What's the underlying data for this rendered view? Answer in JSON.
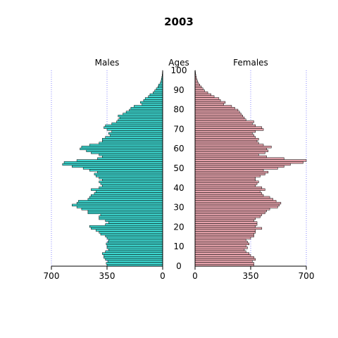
{
  "chart_data": {
    "type": "population-pyramid",
    "title": "2003",
    "center_label": "Ages",
    "left_label": "Males",
    "right_label": "Females",
    "age_ticks": [
      "0",
      "10",
      "20",
      "30",
      "40",
      "50",
      "60",
      "70",
      "80",
      "90",
      "100"
    ],
    "x_ticks": [
      "700",
      "350",
      "0",
      "0",
      "350",
      "700"
    ],
    "xlim": [
      0,
      700
    ],
    "grid": "dotted vertical lines at 350 and 700",
    "ages": [
      0,
      1,
      2,
      3,
      4,
      5,
      6,
      7,
      8,
      9,
      10,
      11,
      12,
      13,
      14,
      15,
      16,
      17,
      18,
      19,
      20,
      21,
      22,
      23,
      24,
      25,
      26,
      27,
      28,
      29,
      30,
      31,
      32,
      33,
      34,
      35,
      36,
      37,
      38,
      39,
      40,
      41,
      42,
      43,
      44,
      45,
      46,
      47,
      48,
      49,
      50,
      51,
      52,
      53,
      54,
      55,
      56,
      57,
      58,
      59,
      60,
      61,
      62,
      63,
      64,
      65,
      66,
      67,
      68,
      69,
      70,
      71,
      72,
      73,
      74,
      75,
      76,
      77,
      78,
      79,
      80,
      81,
      82,
      83,
      84,
      85,
      86,
      87,
      88,
      89,
      90,
      91,
      92,
      93,
      94,
      95,
      96,
      97,
      98,
      99,
      100
    ],
    "males": [
      350,
      355,
      345,
      360,
      370,
      370,
      380,
      360,
      340,
      350,
      350,
      355,
      345,
      340,
      350,
      360,
      390,
      400,
      420,
      450,
      460,
      360,
      340,
      360,
      400,
      400,
      390,
      470,
      470,
      510,
      540,
      570,
      540,
      530,
      470,
      460,
      450,
      430,
      420,
      450,
      400,
      380,
      390,
      400,
      380,
      400,
      420,
      430,
      410,
      460,
      500,
      570,
      630,
      620,
      540,
      410,
      380,
      400,
      450,
      480,
      520,
      510,
      460,
      400,
      380,
      380,
      360,
      330,
      340,
      320,
      350,
      370,
      360,
      320,
      290,
      280,
      270,
      280,
      250,
      230,
      210,
      200,
      180,
      130,
      140,
      120,
      110,
      90,
      80,
      60,
      50,
      40,
      30,
      25,
      15,
      10,
      8,
      5,
      3,
      2,
      1
    ],
    "females": [
      370,
      370,
      360,
      380,
      370,
      350,
      340,
      320,
      310,
      330,
      320,
      340,
      330,
      320,
      350,
      370,
      370,
      380,
      380,
      420,
      380,
      390,
      390,
      370,
      380,
      410,
      420,
      440,
      450,
      470,
      520,
      530,
      540,
      510,
      490,
      470,
      430,
      420,
      410,
      440,
      420,
      380,
      390,
      400,
      380,
      380,
      410,
      440,
      460,
      430,
      520,
      560,
      600,
      680,
      700,
      560,
      450,
      400,
      440,
      460,
      450,
      480,
      430,
      400,
      390,
      400,
      380,
      370,
      360,
      380,
      430,
      420,
      380,
      360,
      370,
      320,
      310,
      300,
      290,
      280,
      270,
      250,
      230,
      180,
      190,
      160,
      150,
      120,
      100,
      80,
      60,
      50,
      40,
      30,
      20,
      15,
      10,
      8,
      5,
      3,
      2
    ],
    "colors": {
      "males": "#3dd6cf",
      "females": "#e6a3ac",
      "stroke": "#000000",
      "grid": "#6a6aff"
    }
  }
}
